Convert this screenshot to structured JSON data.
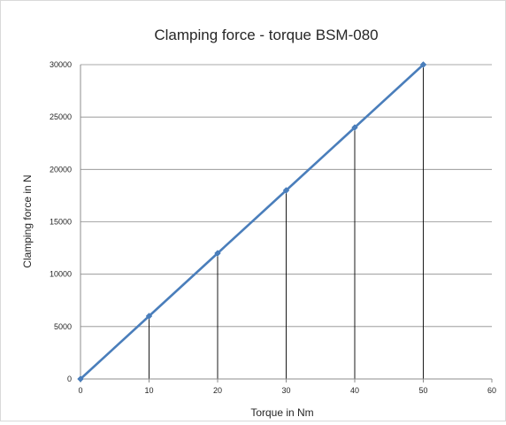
{
  "chart_data": {
    "type": "scatter",
    "title": "Clamping force - torque BSM-080",
    "xlabel": "Torque in Nm",
    "ylabel": "Clamping force in N",
    "xlim": [
      0,
      60
    ],
    "ylim": [
      0,
      30000
    ],
    "x_ticks": [
      "0",
      "10",
      "20",
      "30",
      "40",
      "50",
      "60"
    ],
    "y_ticks": [
      "0",
      "5000",
      "10000",
      "15000",
      "20000",
      "25000",
      "30000"
    ],
    "grid": "horizontal",
    "drop_lines": true,
    "line_color": "#4a7ebb",
    "series": [
      {
        "x": [
          0,
          10,
          20,
          30,
          40,
          50
        ],
        "values": [
          0,
          6000,
          12000,
          18000,
          24000,
          30000
        ]
      }
    ]
  }
}
